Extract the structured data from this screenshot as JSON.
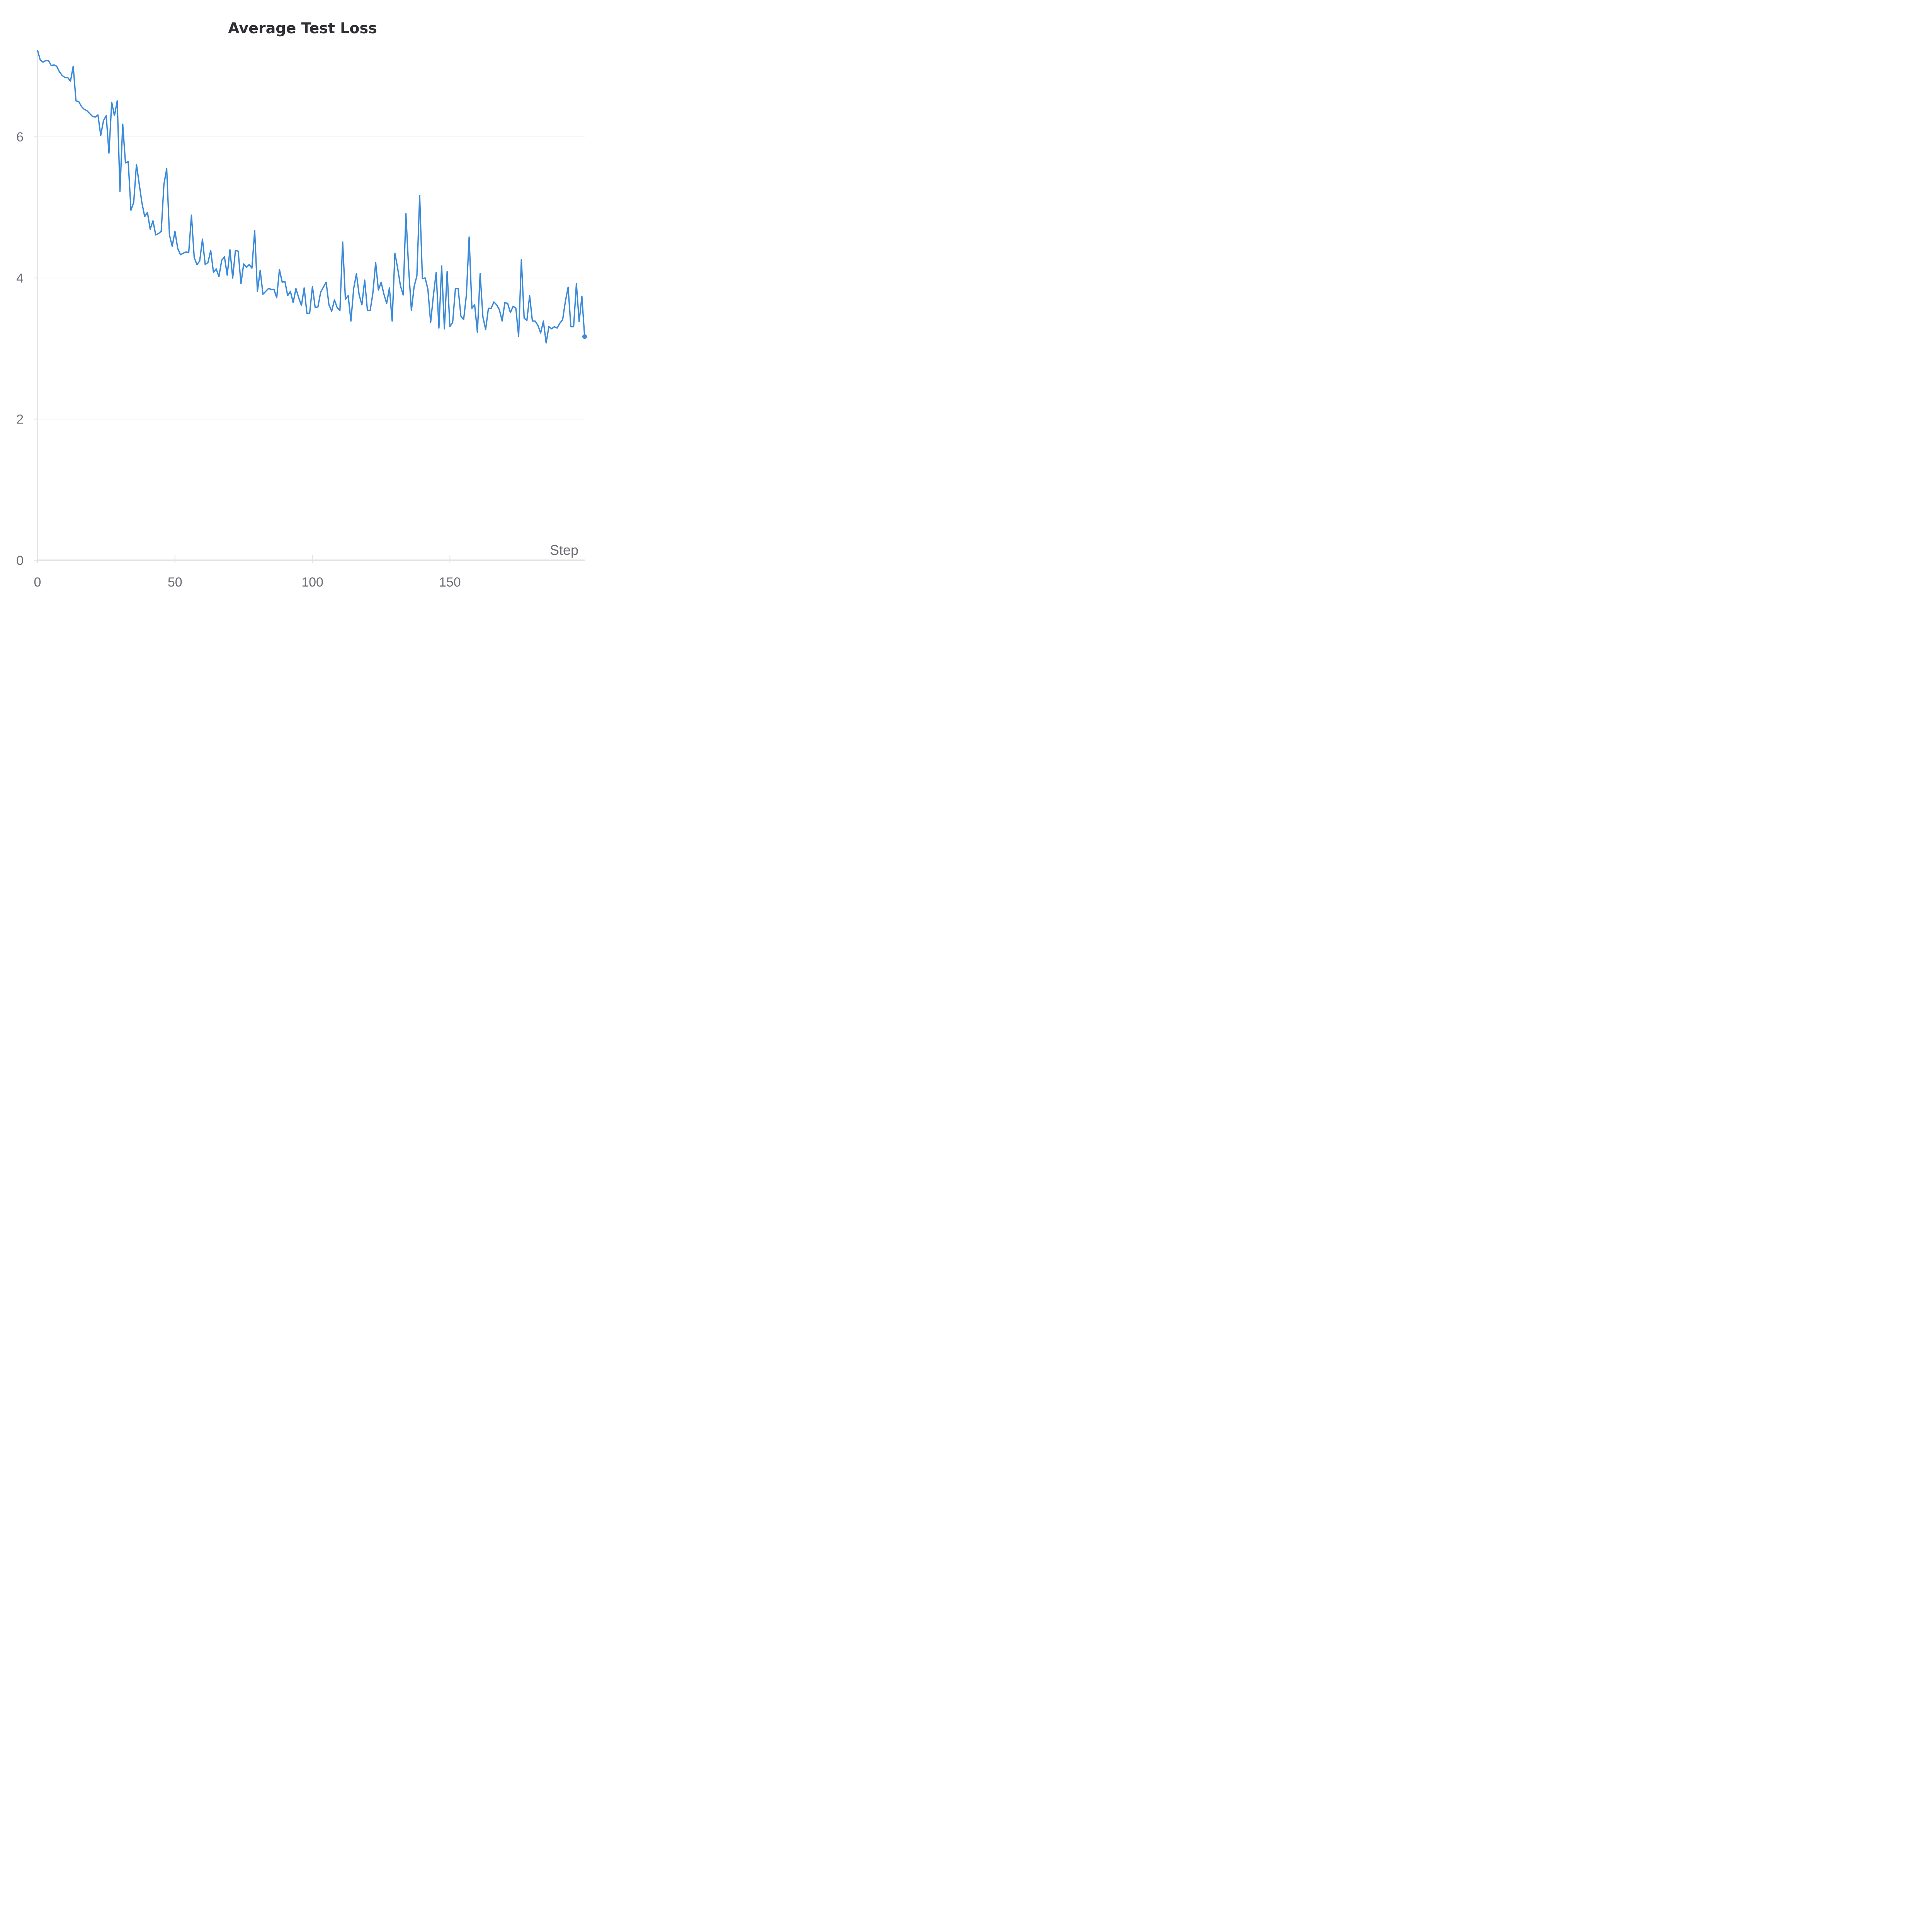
{
  "chart_data": {
    "type": "line",
    "title": "Average Test Loss",
    "xlabel": "Step",
    "ylabel": "",
    "xlim": [
      0,
      199
    ],
    "ylim": [
      0,
      7.2
    ],
    "xticks": [
      0,
      50,
      100,
      150
    ],
    "yticks": [
      0,
      2,
      4,
      6
    ],
    "grid": "horizontal",
    "legend": "none",
    "colors": {
      "series": "#3a8ad9"
    },
    "series": [
      {
        "values": [
          7.23,
          7.09,
          7.06,
          7.08,
          7.08,
          7.01,
          7.02,
          7.0,
          6.92,
          6.87,
          6.84,
          6.84,
          6.79,
          7.0,
          6.51,
          6.5,
          6.43,
          6.39,
          6.37,
          6.33,
          6.29,
          6.28,
          6.31,
          6.02,
          6.23,
          6.3,
          5.77,
          6.49,
          6.3,
          6.51,
          5.23,
          6.18,
          5.63,
          5.65,
          4.96,
          5.07,
          5.61,
          5.33,
          5.06,
          4.87,
          4.93,
          4.69,
          4.81,
          4.61,
          4.63,
          4.66,
          5.33,
          5.55,
          4.61,
          4.45,
          4.66,
          4.42,
          4.33,
          4.35,
          4.37,
          4.36,
          4.89,
          4.29,
          4.19,
          4.24,
          4.55,
          4.19,
          4.22,
          4.39,
          4.08,
          4.13,
          4.02,
          4.25,
          4.3,
          4.04,
          4.4,
          4.0,
          4.39,
          4.38,
          3.92,
          4.2,
          4.15,
          4.19,
          4.14,
          4.67,
          3.81,
          4.11,
          3.77,
          3.81,
          3.85,
          3.84,
          3.84,
          3.72,
          4.12,
          3.94,
          3.95,
          3.75,
          3.81,
          3.65,
          3.85,
          3.72,
          3.61,
          3.86,
          3.5,
          3.5,
          3.88,
          3.58,
          3.59,
          3.8,
          3.87,
          3.94,
          3.62,
          3.53,
          3.69,
          3.58,
          3.54,
          4.51,
          3.7,
          3.75,
          3.39,
          3.85,
          4.06,
          3.76,
          3.62,
          3.97,
          3.54,
          3.54,
          3.79,
          4.22,
          3.83,
          3.94,
          3.77,
          3.64,
          3.86,
          3.39,
          4.35,
          4.14,
          3.89,
          3.76,
          4.91,
          4.13,
          3.54,
          3.88,
          4.03,
          5.17,
          3.99,
          4.0,
          3.84,
          3.37,
          3.75,
          4.08,
          3.29,
          4.17,
          3.28,
          4.09,
          3.31,
          3.37,
          3.85,
          3.85,
          3.46,
          3.41,
          3.76,
          4.58,
          3.57,
          3.62,
          3.23,
          4.06,
          3.45,
          3.27,
          3.57,
          3.57,
          3.66,
          3.62,
          3.55,
          3.39,
          3.65,
          3.64,
          3.51,
          3.6,
          3.57,
          3.17,
          4.26,
          3.43,
          3.4,
          3.75,
          3.39,
          3.39,
          3.33,
          3.22,
          3.39,
          3.08,
          3.31,
          3.28,
          3.31,
          3.29,
          3.36,
          3.41,
          3.67,
          3.87,
          3.31,
          3.31,
          3.92,
          3.38,
          3.74,
          3.17
        ]
      }
    ]
  }
}
